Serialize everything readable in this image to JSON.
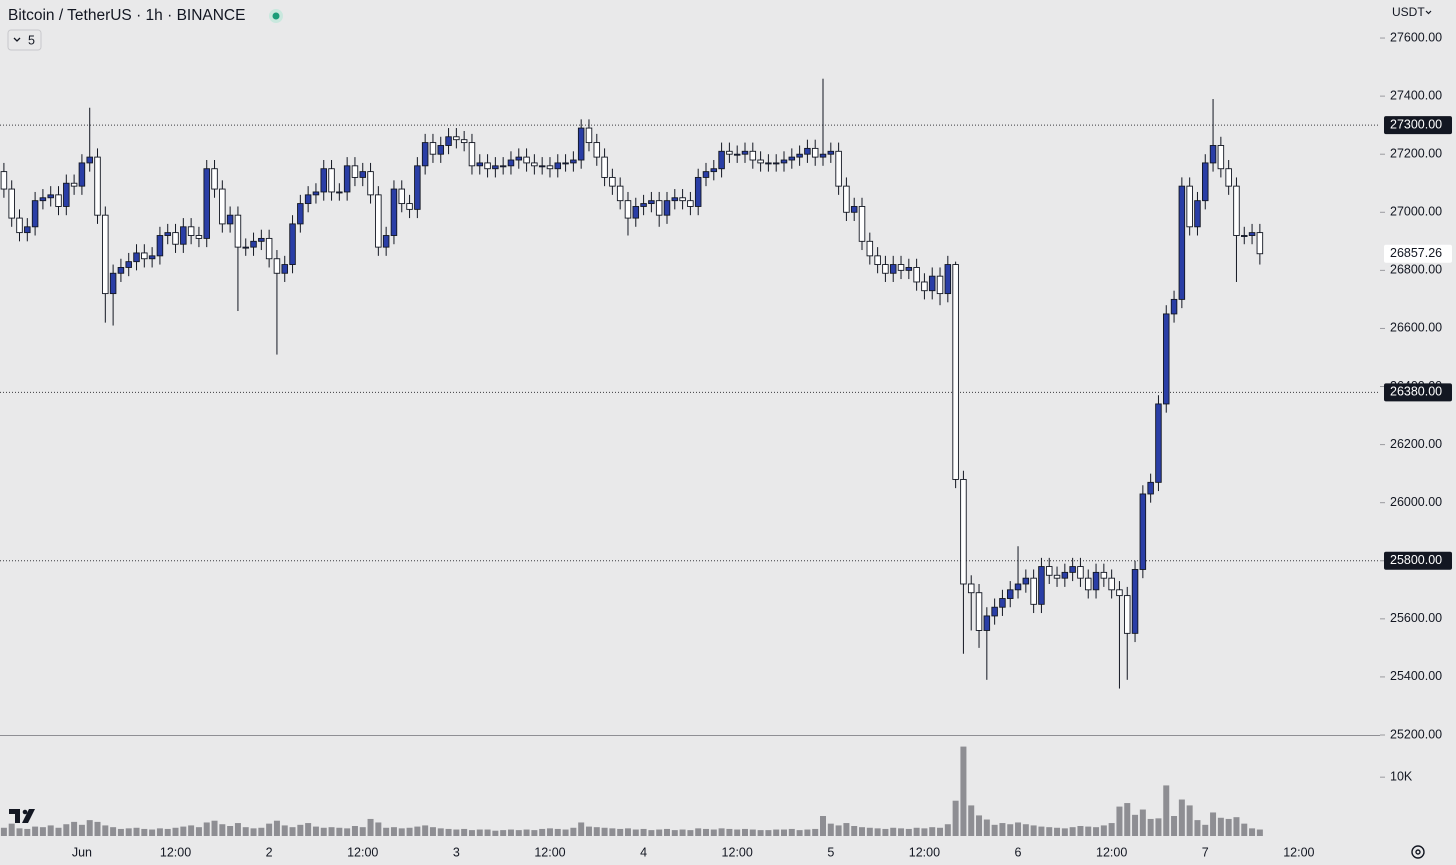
{
  "chart_data": {
    "type": "candlestick",
    "title": "Bitcoin / TetherUS · 1h · BINANCE",
    "indicator_label": "5",
    "currency": "USDT",
    "up_color": "#2a3ea6",
    "down_color": "#ffffff",
    "volume_color": "#8e8e93",
    "open": [
      27140,
      27080,
      26980,
      26930,
      26950,
      27040,
      27050,
      27060,
      27020,
      27100,
      27090,
      27170,
      27190,
      26990,
      26720,
      26790,
      26810,
      26830,
      26860,
      26840,
      26850,
      26920,
      26930,
      26890,
      26950,
      26920,
      26910,
      27150,
      27080,
      26960,
      26990,
      26880,
      26880,
      26900,
      26910,
      26840,
      26790,
      26820,
      26960,
      27030,
      27060,
      27070,
      27150,
      27070,
      27070,
      27160,
      27120,
      27140,
      27060,
      26880,
      26920,
      27080,
      27030,
      27010,
      27160,
      27240,
      27200,
      27230,
      27260,
      27250,
      27240,
      27160,
      27170,
      27150,
      27160,
      27160,
      27180,
      27190,
      27170,
      27160,
      27160,
      27150,
      27170,
      27170,
      27180,
      27290,
      27240,
      27190,
      27120,
      27090,
      27040,
      26980,
      27020,
      27030,
      27040,
      26990,
      27040,
      27050,
      27040,
      27020,
      27120,
      27140,
      27150,
      27210,
      27200,
      27200,
      27210,
      27180,
      27170,
      27170,
      27170,
      27180,
      27190,
      27200,
      27220,
      27190,
      27200,
      27210,
      27090,
      27000,
      27020,
      26900,
      26850,
      26820,
      26790,
      26820,
      26800,
      26810,
      26760,
      26730,
      26780,
      26720,
      26820,
      26080,
      25720,
      25690,
      25560,
      25610,
      25640,
      25670,
      25700,
      25720,
      25740,
      25650,
      25780,
      25750,
      25740,
      25760,
      25780,
      25740,
      25700,
      25760,
      25740,
      25700,
      25680,
      25550,
      25770,
      26030,
      26070,
      26340,
      26650,
      26700,
      27090,
      26950,
      27040,
      27170,
      27230,
      27150,
      27090,
      26920,
      26920,
      26930
    ],
    "high": [
      27170,
      27110,
      27010,
      26980,
      27070,
      27080,
      27090,
      27090,
      27130,
      27130,
      27200,
      27360,
      27220,
      27020,
      26820,
      26840,
      26860,
      26890,
      26890,
      26880,
      26950,
      26960,
      26960,
      26980,
      26980,
      26950,
      27180,
      27180,
      27110,
      27020,
      27020,
      26910,
      26930,
      26940,
      26940,
      26870,
      26850,
      26990,
      27060,
      27090,
      27100,
      27180,
      27180,
      27100,
      27190,
      27190,
      27170,
      27170,
      27090,
      26950,
      27110,
      27110,
      27060,
      27190,
      27270,
      27270,
      27260,
      27290,
      27290,
      27280,
      27270,
      27200,
      27200,
      27190,
      27190,
      27210,
      27220,
      27220,
      27200,
      27190,
      27190,
      27200,
      27200,
      27210,
      27320,
      27320,
      27270,
      27220,
      27150,
      27120,
      27070,
      27050,
      27060,
      27070,
      27070,
      27070,
      27080,
      27080,
      27070,
      27150,
      27170,
      27180,
      27240,
      27240,
      27230,
      27240,
      27240,
      27210,
      27200,
      27200,
      27210,
      27220,
      27230,
      27250,
      27250,
      27460,
      27240,
      27240,
      27120,
      27050,
      27050,
      26930,
      26880,
      26850,
      26850,
      26850,
      26840,
      26840,
      26790,
      26810,
      26810,
      26850,
      26830,
      26110,
      25750,
      25720,
      25640,
      25670,
      25700,
      25730,
      25850,
      25770,
      25770,
      25810,
      25810,
      25780,
      25790,
      25810,
      25810,
      25770,
      25790,
      25790,
      25770,
      25730,
      25710,
      25800,
      26060,
      26100,
      26370,
      26680,
      26730,
      27120,
      27120,
      27070,
      27200,
      27390,
      27260,
      27180,
      27120,
      26950,
      26960,
      26960
    ],
    "low": [
      27050,
      26950,
      26900,
      26900,
      26920,
      27010,
      27020,
      26990,
      26990,
      27060,
      27060,
      27140,
      26960,
      26620,
      26610,
      26760,
      26780,
      26800,
      26810,
      26810,
      26820,
      26890,
      26860,
      26860,
      26890,
      26880,
      26880,
      27050,
      26930,
      26930,
      26660,
      26850,
      26850,
      26870,
      26810,
      26510,
      26760,
      26790,
      26930,
      27000,
      27030,
      27040,
      27040,
      27040,
      27040,
      27090,
      27090,
      27030,
      26850,
      26850,
      26890,
      27000,
      26980,
      26980,
      27130,
      27170,
      27170,
      27200,
      27220,
      27210,
      27130,
      27130,
      27120,
      27120,
      27130,
      27130,
      27150,
      27140,
      27130,
      27130,
      27120,
      27120,
      27140,
      27140,
      27150,
      27210,
      27160,
      27090,
      27060,
      27010,
      26920,
      26950,
      26990,
      27000,
      26950,
      26960,
      27010,
      27010,
      26990,
      26990,
      27090,
      27110,
      27120,
      27170,
      27170,
      27170,
      27150,
      27140,
      27140,
      27140,
      27140,
      27150,
      27160,
      27170,
      27160,
      27160,
      27170,
      27060,
      26970,
      26970,
      26870,
      26820,
      26790,
      26760,
      26760,
      26770,
      26770,
      26730,
      26700,
      26700,
      26680,
      26690,
      26050,
      25480,
      25560,
      25500,
      25390,
      25580,
      25610,
      25640,
      25670,
      25690,
      25620,
      25620,
      25720,
      25710,
      25710,
      25730,
      25710,
      25670,
      25670,
      25710,
      25670,
      25360,
      25390,
      25520,
      25740,
      26000,
      26040,
      26310,
      26620,
      26670,
      26920,
      26920,
      27010,
      27140,
      27120,
      27060,
      26760,
      26890,
      26890,
      26820
    ],
    "close": [
      27080,
      26980,
      26930,
      26950,
      27040,
      27050,
      27060,
      27020,
      27100,
      27090,
      27170,
      27190,
      26990,
      26720,
      26790,
      26810,
      26830,
      26860,
      26840,
      26850,
      26920,
      26930,
      26890,
      26950,
      26920,
      26910,
      27150,
      27080,
      26960,
      26990,
      26880,
      26880,
      26900,
      26910,
      26840,
      26790,
      26820,
      26960,
      27030,
      27060,
      27070,
      27150,
      27070,
      27070,
      27160,
      27120,
      27140,
      27060,
      26880,
      26920,
      27080,
      27030,
      27010,
      27160,
      27240,
      27200,
      27230,
      27260,
      27250,
      27240,
      27160,
      27170,
      27150,
      27160,
      27160,
      27180,
      27190,
      27170,
      27160,
      27160,
      27150,
      27170,
      27170,
      27180,
      27290,
      27240,
      27190,
      27120,
      27090,
      27040,
      26980,
      27020,
      27030,
      27040,
      26990,
      27040,
      27050,
      27040,
      27020,
      27120,
      27140,
      27150,
      27210,
      27200,
      27200,
      27210,
      27180,
      27170,
      27170,
      27170,
      27180,
      27190,
      27200,
      27220,
      27190,
      27200,
      27210,
      27090,
      27000,
      27020,
      26900,
      26850,
      26820,
      26790,
      26820,
      26800,
      26810,
      26760,
      26730,
      26780,
      26720,
      26820,
      26080,
      25720,
      25690,
      25560,
      25610,
      25640,
      25670,
      25700,
      25720,
      25740,
      25650,
      25780,
      25750,
      25740,
      25760,
      25780,
      25740,
      25700,
      25760,
      25740,
      25700,
      25680,
      25550,
      25770,
      26030,
      26070,
      26340,
      26650,
      26700,
      27090,
      26950,
      27040,
      27170,
      27230,
      27150,
      27090,
      26920,
      26920,
      26930,
      26857.26
    ],
    "volume": [
      1400,
      2100,
      1300,
      1200,
      1600,
      1500,
      1800,
      1400,
      2000,
      2400,
      1900,
      2700,
      2400,
      1800,
      1500,
      1200,
      1300,
      1400,
      1200,
      1100,
      1300,
      1200,
      1400,
      1600,
      1800,
      1500,
      2300,
      2600,
      2000,
      1700,
      2200,
      1500,
      1300,
      1400,
      2100,
      2600,
      1800,
      1500,
      1900,
      2200,
      1600,
      1400,
      1500,
      1400,
      1300,
      1700,
      1500,
      2900,
      2300,
      1400,
      1500,
      1300,
      1400,
      1600,
      1800,
      1500,
      1300,
      1200,
      1100,
      1200,
      1000,
      1100,
      1100,
      900,
      1000,
      1100,
      1000,
      1100,
      1000,
      1200,
      1300,
      1200,
      1100,
      1400,
      2300,
      1600,
      1500,
      1400,
      1300,
      1200,
      1300,
      1100,
      1200,
      1000,
      1100,
      1200,
      1000,
      1100,
      1000,
      1300,
      1200,
      1100,
      1300,
      1200,
      1100,
      1200,
      1100,
      1000,
      1000,
      1100,
      1100,
      1200,
      1000,
      1100,
      1200,
      3400,
      2100,
      1800,
      2200,
      1700,
      1500,
      1400,
      1300,
      1200,
      1400,
      1300,
      1200,
      1400,
      1300,
      1500,
      1400,
      2000,
      6000,
      15200,
      5200,
      3500,
      2800,
      1900,
      2200,
      2000,
      2300,
      2000,
      1800,
      1600,
      1500,
      1400,
      1300,
      1500,
      1700,
      1600,
      1500,
      1800,
      2200,
      5000,
      5600,
      3600,
      4500,
      2900,
      3000,
      8600,
      3400,
      6200,
      5200,
      2700,
      1900,
      4000,
      3100,
      2900,
      3200,
      2100,
      1300,
      1100
    ],
    "xlim": [
      -0.5,
      176.4
    ],
    "xticks": [
      {
        "value": 10,
        "label": "Jun"
      },
      {
        "value": 22,
        "label": "12:00"
      },
      {
        "value": 34,
        "label": "2"
      },
      {
        "value": 46,
        "label": "12:00"
      },
      {
        "value": 58,
        "label": "3"
      },
      {
        "value": 70,
        "label": "12:00"
      },
      {
        "value": 82,
        "label": "4"
      },
      {
        "value": 94,
        "label": "12:00"
      },
      {
        "value": 106,
        "label": "5"
      },
      {
        "value": 118,
        "label": "12:00"
      },
      {
        "value": 130,
        "label": "6"
      },
      {
        "value": 142,
        "label": "12:00"
      },
      {
        "value": 154,
        "label": "7"
      },
      {
        "value": 166,
        "label": "12:00"
      }
    ],
    "ylim": [
      25200,
      27731
    ],
    "yticks": [
      {
        "value": 25200,
        "label": "25200.00"
      },
      {
        "value": 25400,
        "label": "25400.00"
      },
      {
        "value": 25600,
        "label": "25600.00"
      },
      {
        "value": 25800,
        "label": "25800.00"
      },
      {
        "value": 26000,
        "label": "26000.00"
      },
      {
        "value": 26200,
        "label": "26200.00"
      },
      {
        "value": 26400,
        "label": "26400.00"
      },
      {
        "value": 26600,
        "label": "26600.00"
      },
      {
        "value": 26800,
        "label": "26800.00"
      },
      {
        "value": 27000,
        "label": "27000.00"
      },
      {
        "value": 27200,
        "label": "27200.00"
      },
      {
        "value": 27400,
        "label": "27400.00"
      },
      {
        "value": 27600,
        "label": "27600.00"
      }
    ],
    "volume_ylim": [
      0,
      17000
    ],
    "volume_yticks": [
      {
        "value": 10000,
        "label": "10K"
      }
    ],
    "price_lines": [
      {
        "value": 27300,
        "label": "27300.00"
      },
      {
        "value": 26380,
        "label": "26380.00"
      },
      {
        "value": 25800,
        "label": "25800.00"
      }
    ],
    "last_price": {
      "value": 26857.26,
      "label": "26857.26"
    }
  }
}
